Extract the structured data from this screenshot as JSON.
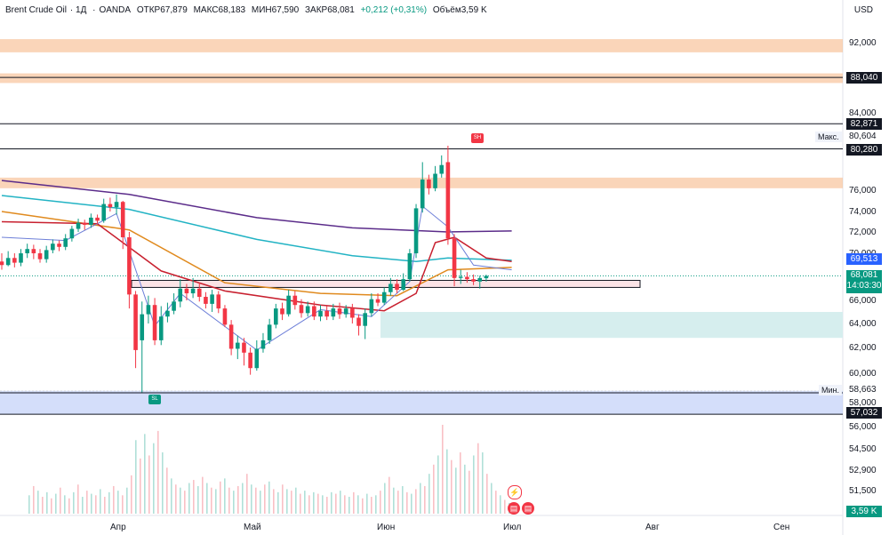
{
  "header": {
    "symbol": "Brent Crude Oil",
    "interval": "1Д",
    "source": "OANDA",
    "open_text": "ОТКР67,879",
    "high_text": "МАКС68,183",
    "low_text": "МИН67,590",
    "close_text": "ЗАКР68,081",
    "change_text": "+0,212 (+0,31%)",
    "volume_text": "Объём3,59 K",
    "currency": "USD"
  },
  "axis": {
    "price_labels": [
      "92,000",
      "84,000",
      "76,000",
      "74,000",
      "72,000",
      "70,000",
      "66,000",
      "64,000",
      "62,000",
      "60,000",
      "58,000",
      "56,000",
      "54,500",
      "52,900",
      "51,500"
    ],
    "time_labels": [
      "Апр",
      "Май",
      "Июн",
      "Июл",
      "Авг",
      "Сен"
    ]
  },
  "tags": {
    "level_88": "88,040",
    "level_82": "82,871",
    "max_value": "80,604",
    "level_80": "80,280",
    "ma_value": "69,513",
    "last_price": "68,081",
    "countdown": "14:03:30",
    "min_value": "58,663",
    "level_57": "57,032",
    "volume": "3,59 K"
  },
  "side_labels": {
    "max_label": "Макс.",
    "min_label": "Мин."
  },
  "markers": {
    "sell": "SH",
    "buy": "SL"
  },
  "colors": {
    "up": "#089981",
    "down": "#f23645",
    "ma_purple": "#5b2c8a",
    "ma_teal": "#22b3c4",
    "ma_orange": "#e08a1e",
    "ma_red": "#c8202f",
    "ma_blue": "#6d7fd8",
    "zone_orange": "#f7b98b",
    "zone_blue": "#b8c8f7",
    "zone_teal": "#d6eeee"
  },
  "chart_data": {
    "type": "candlestick",
    "symbol": "Brent Crude Oil",
    "interval": "1Д",
    "y_range": [
      51.0,
      94.0
    ],
    "candles": [
      [
        69.3,
        69.0,
        70.0,
        68.6
      ],
      [
        69.0,
        69.6,
        70.2,
        68.9
      ],
      [
        69.6,
        69.2,
        70.0,
        68.8
      ],
      [
        69.2,
        70.0,
        70.4,
        68.9
      ],
      [
        70.0,
        70.4,
        70.9,
        69.6
      ],
      [
        70.4,
        70.0,
        70.8,
        69.5
      ],
      [
        70.0,
        69.5,
        70.4,
        69.2
      ],
      [
        69.5,
        70.3,
        70.7,
        69.2
      ],
      [
        70.3,
        70.9,
        71.3,
        70.0
      ],
      [
        70.9,
        70.6,
        71.2,
        70.2
      ],
      [
        70.6,
        71.4,
        71.8,
        70.3
      ],
      [
        71.4,
        72.3,
        72.6,
        71.1
      ],
      [
        72.3,
        72.9,
        73.3,
        72.0
      ],
      [
        72.9,
        72.7,
        73.2,
        72.2
      ],
      [
        72.7,
        73.4,
        73.8,
        72.4
      ],
      [
        73.4,
        73.1,
        73.7,
        72.8
      ],
      [
        73.1,
        74.7,
        75.2,
        72.9
      ],
      [
        74.7,
        74.4,
        75.3,
        74.0
      ],
      [
        74.4,
        74.9,
        75.6,
        73.7
      ],
      [
        74.9,
        71.5,
        75.0,
        70.4
      ],
      [
        71.5,
        66.5,
        72.0,
        65.3
      ],
      [
        66.5,
        61.8,
        66.8,
        60.4
      ],
      [
        62.6,
        64.8,
        65.9,
        58.7
      ],
      [
        64.8,
        65.6,
        66.4,
        64.0
      ],
      [
        65.6,
        62.6,
        66.2,
        62.2
      ],
      [
        62.6,
        64.6,
        65.5,
        62.2
      ],
      [
        64.6,
        65.1,
        65.8,
        64.1
      ],
      [
        65.1,
        65.9,
        66.6,
        64.8
      ],
      [
        65.9,
        67.0,
        67.8,
        65.4
      ],
      [
        67.0,
        66.6,
        67.4,
        66.0
      ],
      [
        66.6,
        67.0,
        67.9,
        66.2
      ],
      [
        67.0,
        66.3,
        67.5,
        65.9
      ],
      [
        66.3,
        65.7,
        66.7,
        65.3
      ],
      [
        65.7,
        66.5,
        66.9,
        65.0
      ],
      [
        66.5,
        65.3,
        66.8,
        64.9
      ],
      [
        65.3,
        63.9,
        65.6,
        63.7
      ],
      [
        63.9,
        61.9,
        64.3,
        61.4
      ],
      [
        61.9,
        62.4,
        63.0,
        61.1
      ],
      [
        62.4,
        61.6,
        62.8,
        60.6
      ],
      [
        61.6,
        60.4,
        62.0,
        59.9
      ],
      [
        60.4,
        61.9,
        62.6,
        60.2
      ],
      [
        61.9,
        62.6,
        63.2,
        61.6
      ],
      [
        62.6,
        63.9,
        64.4,
        62.3
      ],
      [
        63.9,
        65.3,
        65.7,
        63.6
      ],
      [
        65.3,
        64.8,
        65.8,
        64.3
      ],
      [
        64.8,
        66.4,
        66.9,
        64.6
      ],
      [
        66.4,
        65.6,
        66.8,
        65.2
      ],
      [
        65.6,
        64.9,
        66.1,
        64.5
      ],
      [
        64.9,
        65.5,
        65.9,
        64.6
      ],
      [
        65.5,
        64.6,
        65.9,
        64.3
      ],
      [
        64.6,
        65.1,
        65.6,
        64.2
      ],
      [
        65.1,
        64.6,
        65.5,
        64.3
      ],
      [
        64.6,
        65.3,
        65.7,
        64.3
      ],
      [
        65.3,
        64.8,
        65.8,
        64.4
      ],
      [
        64.8,
        65.3,
        65.6,
        64.5
      ],
      [
        65.3,
        64.5,
        65.7,
        64.0
      ],
      [
        64.5,
        63.8,
        64.8,
        63.0
      ],
      [
        63.8,
        64.9,
        65.3,
        62.7
      ],
      [
        64.9,
        66.1,
        66.6,
        64.6
      ],
      [
        66.1,
        65.8,
        66.6,
        65.5
      ],
      [
        65.8,
        66.7,
        67.1,
        65.6
      ],
      [
        66.7,
        67.4,
        67.9,
        66.4
      ],
      [
        67.4,
        66.9,
        67.8,
        66.6
      ],
      [
        66.9,
        67.8,
        68.3,
        66.8
      ],
      [
        67.8,
        70.0,
        70.4,
        67.6
      ],
      [
        70.0,
        74.3,
        74.7,
        69.6
      ],
      [
        74.3,
        77.1,
        78.9,
        73.9
      ],
      [
        77.1,
        76.2,
        77.6,
        75.6
      ],
      [
        76.2,
        77.7,
        78.5,
        75.9
      ],
      [
        77.7,
        78.6,
        79.6,
        77.3
      ],
      [
        78.9,
        71.4,
        80.6,
        70.8
      ],
      [
        71.4,
        67.9,
        71.8,
        67.2
      ],
      [
        67.9,
        68.0,
        68.6,
        67.4
      ],
      [
        68.0,
        67.8,
        68.4,
        67.5
      ],
      [
        67.8,
        67.6,
        68.2,
        67.3
      ],
      [
        67.6,
        67.9,
        68.1,
        67.0
      ],
      [
        67.88,
        68.08,
        68.18,
        67.59
      ]
    ],
    "moving_averages": [
      {
        "color": "purple",
        "values": [
          [
            0,
            77.0
          ],
          [
            20,
            75.6
          ],
          [
            40,
            73.4
          ],
          [
            55,
            72.4
          ],
          [
            70,
            72.0
          ],
          [
            80,
            72.1
          ]
        ]
      },
      {
        "color": "teal",
        "values": [
          [
            0,
            75.5
          ],
          [
            20,
            74.2
          ],
          [
            40,
            71.3
          ],
          [
            55,
            69.8
          ],
          [
            65,
            69.3
          ],
          [
            70,
            69.6
          ],
          [
            80,
            69.4
          ]
        ]
      },
      {
        "color": "orange",
        "values": [
          [
            0,
            74.0
          ],
          [
            20,
            72.2
          ],
          [
            35,
            67.5
          ],
          [
            50,
            66.6
          ],
          [
            62,
            66.4
          ],
          [
            70,
            68.6
          ],
          [
            80,
            68.8
          ]
        ]
      },
      {
        "color": "red",
        "values": [
          [
            0,
            73.0
          ],
          [
            15,
            72.8
          ],
          [
            25,
            68.5
          ],
          [
            35,
            66.8
          ],
          [
            50,
            65.6
          ],
          [
            60,
            65.1
          ],
          [
            65,
            66.6
          ],
          [
            68,
            71.0
          ],
          [
            71,
            71.5
          ],
          [
            76,
            69.6
          ],
          [
            80,
            69.3
          ]
        ]
      },
      {
        "color": "blue",
        "values": [
          [
            0,
            71.5
          ],
          [
            10,
            71.2
          ],
          [
            18,
            73.8
          ],
          [
            24,
            63.8
          ],
          [
            28,
            66.6
          ],
          [
            40,
            61.8
          ],
          [
            50,
            65.2
          ],
          [
            58,
            64.6
          ],
          [
            64,
            67.6
          ],
          [
            66,
            74.5
          ],
          [
            70,
            72.5
          ],
          [
            74,
            69.0
          ],
          [
            80,
            68.6
          ]
        ]
      }
    ],
    "volumes": [
      [
        32,
        1200
      ],
      [
        37,
        1800
      ],
      [
        42,
        1500
      ],
      [
        47,
        1100
      ],
      [
        52,
        1400
      ],
      [
        57,
        1000
      ],
      [
        62,
        1300
      ],
      [
        67,
        1700
      ],
      [
        72,
        1200
      ],
      [
        77,
        1000
      ],
      [
        82,
        1400
      ],
      [
        87,
        1900
      ],
      [
        92,
        1100
      ],
      [
        97,
        1500
      ],
      [
        102,
        1300
      ],
      [
        107,
        1200
      ],
      [
        112,
        1600
      ],
      [
        117,
        1100
      ],
      [
        122,
        1400
      ],
      [
        127,
        1800
      ],
      [
        132,
        1500
      ],
      [
        137,
        1200
      ],
      [
        142,
        1700
      ],
      [
        147,
        2500
      ],
      [
        152,
        4800
      ],
      [
        157,
        3600
      ],
      [
        162,
        5200
      ],
      [
        167,
        3800
      ],
      [
        172,
        4600
      ],
      [
        177,
        5400
      ],
      [
        182,
        4000
      ],
      [
        187,
        3000
      ],
      [
        192,
        2300
      ],
      [
        197,
        1900
      ],
      [
        202,
        1700
      ],
      [
        207,
        1500
      ],
      [
        212,
        2000
      ],
      [
        217,
        2200
      ],
      [
        222,
        1800
      ],
      [
        227,
        2400
      ],
      [
        232,
        2000
      ],
      [
        237,
        1700
      ],
      [
        242,
        1600
      ],
      [
        247,
        2100
      ],
      [
        252,
        2300
      ],
      [
        257,
        1700
      ],
      [
        262,
        1500
      ],
      [
        267,
        1800
      ],
      [
        272,
        2000
      ],
      [
        277,
        2600
      ],
      [
        282,
        1900
      ],
      [
        287,
        1700
      ],
      [
        292,
        1500
      ],
      [
        297,
        1900
      ],
      [
        302,
        2100
      ],
      [
        307,
        1600
      ],
      [
        312,
        1400
      ],
      [
        317,
        1900
      ],
      [
        322,
        1600
      ],
      [
        327,
        1500
      ],
      [
        332,
        1700
      ],
      [
        337,
        1300
      ],
      [
        342,
        1500
      ],
      [
        347,
        1200
      ],
      [
        352,
        1400
      ],
      [
        357,
        1300
      ],
      [
        362,
        1200
      ],
      [
        367,
        1100
      ],
      [
        372,
        1400
      ],
      [
        377,
        1300
      ],
      [
        382,
        1500
      ],
      [
        387,
        1200
      ],
      [
        392,
        1100
      ],
      [
        397,
        1400
      ],
      [
        402,
        1200
      ],
      [
        407,
        1000
      ],
      [
        412,
        1300
      ],
      [
        417,
        1100
      ],
      [
        422,
        1200
      ],
      [
        427,
        1500
      ],
      [
        432,
        2000
      ],
      [
        437,
        2400
      ],
      [
        442,
        1700
      ],
      [
        447,
        1500
      ],
      [
        452,
        1800
      ],
      [
        457,
        1400
      ],
      [
        462,
        1300
      ],
      [
        467,
        1600
      ],
      [
        472,
        2000
      ],
      [
        477,
        1800
      ],
      [
        482,
        2600
      ],
      [
        487,
        3200
      ],
      [
        492,
        3800
      ],
      [
        497,
        5800
      ],
      [
        502,
        4200
      ],
      [
        507,
        3500
      ],
      [
        512,
        3000
      ],
      [
        517,
        4000
      ],
      [
        522,
        3200
      ],
      [
        527,
        2800
      ],
      [
        532,
        3800
      ],
      [
        537,
        4600
      ],
      [
        542,
        4000
      ],
      [
        547,
        2600
      ],
      [
        552,
        2000
      ],
      [
        557,
        1500
      ],
      [
        562,
        1200
      ],
      [
        567,
        900
      ],
      [
        572,
        700
      ],
      [
        577,
        500
      ]
    ],
    "volume_max": 5800,
    "zones": [
      {
        "color": "zone_orange",
        "y_high": 92.4,
        "y_low": 90.9
      },
      {
        "color": "zone_orange",
        "y_high": 88.5,
        "y_low": 87.4
      },
      {
        "color": "zone_orange",
        "y_high": 77.3,
        "y_low": 76.2
      },
      {
        "color": "zone_blue",
        "y_high": 58.8,
        "y_low": 57.0
      },
      {
        "color": "zone_teal",
        "y_high": 65.0,
        "y_low": 62.8
      }
    ],
    "horizontal_levels": [
      88.04,
      82.871,
      80.28,
      58.663,
      57.032
    ],
    "range_box": {
      "y_high": 67.7,
      "y_low": 67.1
    },
    "last_price": 68.081,
    "max": 80.604,
    "min": 58.663
  }
}
